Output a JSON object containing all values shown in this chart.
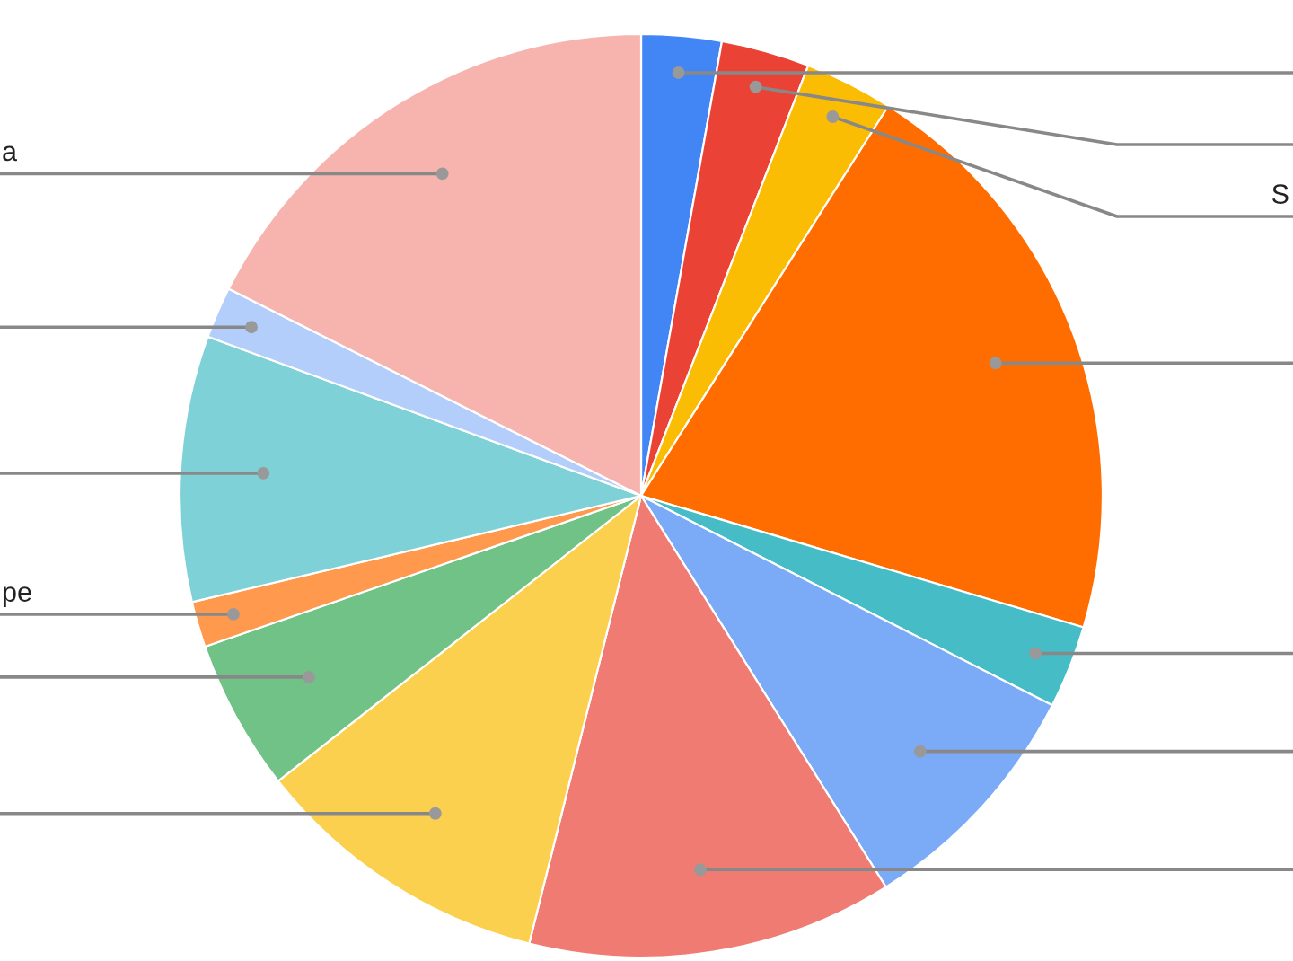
{
  "chart_data": {
    "type": "pie",
    "categories": [
      null,
      null,
      "S",
      null,
      null,
      null,
      null,
      null,
      null,
      "pe",
      null,
      null,
      "a"
    ],
    "values": [
      2.8,
      3.1,
      3.1,
      20.6,
      2.9,
      8.6,
      12.8,
      10.5,
      5.3,
      1.6,
      9.3,
      1.8,
      17.6
    ],
    "colors": [
      "#4285f4",
      "#ea4335",
      "#fbbc04",
      "#ff6d01",
      "#46bdc6",
      "#7baaf7",
      "#f07b72",
      "#fcd04f",
      "#71c287",
      "#ff994d",
      "#7ed1d7",
      "#b3cefb",
      "#f7b4ae"
    ]
  }
}
